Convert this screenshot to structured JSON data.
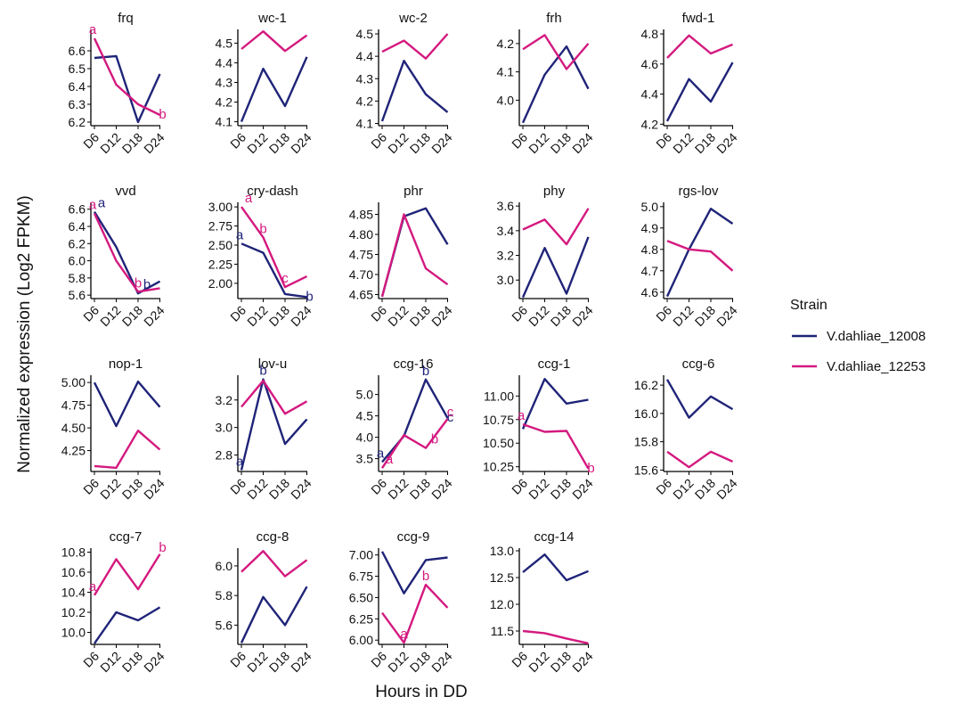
{
  "xlabel": "Hours in DD",
  "ylabel": "Normalized expression (Log2 FPKM)",
  "legend": {
    "title": "Strain",
    "placement": "right",
    "entries": [
      {
        "name": "V.dahliae_12008",
        "color": "#1f2478"
      },
      {
        "name": "V.dahliae_12253",
        "color": "#d4197f"
      }
    ]
  },
  "chart_data": {
    "type": "line",
    "categories": [
      "D6",
      "D12",
      "D18",
      "D24"
    ],
    "panels": [
      {
        "title": "frq",
        "yticks": [
          6.2,
          6.3,
          6.4,
          6.5,
          6.6
        ],
        "tick_decimals": 1,
        "ylim": [
          6.18,
          6.72
        ],
        "series": [
          {
            "name": "V.dahliae_12008",
            "values": [
              6.56,
              6.57,
              6.2,
              6.47
            ]
          },
          {
            "name": "V.dahliae_12253",
            "values": [
              6.67,
              6.41,
              6.3,
              6.24
            ]
          }
        ],
        "annotations": [
          {
            "series": "V.dahliae_12253",
            "point": 0,
            "text": "a"
          },
          {
            "series": "V.dahliae_12253",
            "point": 3,
            "text": "b"
          }
        ]
      },
      {
        "title": "wc-1",
        "yticks": [
          4.1,
          4.2,
          4.3,
          4.4,
          4.5
        ],
        "tick_decimals": 1,
        "ylim": [
          4.08,
          4.57
        ],
        "series": [
          {
            "name": "V.dahliae_12008",
            "values": [
              4.1,
              4.37,
              4.18,
              4.43
            ]
          },
          {
            "name": "V.dahliae_12253",
            "values": [
              4.47,
              4.56,
              4.46,
              4.54
            ]
          }
        ],
        "annotations": []
      },
      {
        "title": "wc-2",
        "yticks": [
          4.1,
          4.2,
          4.3,
          4.4,
          4.5
        ],
        "tick_decimals": 1,
        "ylim": [
          4.09,
          4.52
        ],
        "series": [
          {
            "name": "V.dahliae_12008",
            "values": [
              4.11,
              4.38,
              4.23,
              4.15
            ]
          },
          {
            "name": "V.dahliae_12253",
            "values": [
              4.42,
              4.47,
              4.39,
              4.5
            ]
          }
        ],
        "annotations": []
      },
      {
        "title": "frh",
        "yticks": [
          4.0,
          4.1,
          4.2
        ],
        "tick_decimals": 1,
        "ylim": [
          3.91,
          4.25
        ],
        "series": [
          {
            "name": "V.dahliae_12008",
            "values": [
              3.92,
              4.09,
              4.19,
              4.04
            ]
          },
          {
            "name": "V.dahliae_12253",
            "values": [
              4.18,
              4.23,
              4.11,
              4.2
            ]
          }
        ],
        "annotations": []
      },
      {
        "title": "fwd-1",
        "yticks": [
          4.2,
          4.4,
          4.6,
          4.8
        ],
        "tick_decimals": 1,
        "ylim": [
          4.19,
          4.83
        ],
        "series": [
          {
            "name": "V.dahliae_12008",
            "values": [
              4.22,
              4.5,
              4.35,
              4.61
            ]
          },
          {
            "name": "V.dahliae_12253",
            "values": [
              4.64,
              4.79,
              4.67,
              4.73
            ]
          }
        ],
        "annotations": []
      },
      {
        "title": "vvd",
        "yticks": [
          5.6,
          5.8,
          6.0,
          6.2,
          6.4,
          6.6
        ],
        "tick_decimals": 1,
        "ylim": [
          5.56,
          6.68
        ],
        "series": [
          {
            "name": "V.dahliae_12008",
            "values": [
              6.57,
              6.16,
              5.62,
              5.76
            ]
          },
          {
            "name": "V.dahliae_12253",
            "values": [
              6.55,
              6.0,
              5.64,
              5.68
            ]
          }
        ],
        "annotations": [
          {
            "series": "V.dahliae_12253",
            "point": 0,
            "text": "a"
          },
          {
            "series": "V.dahliae_12008",
            "point": 0,
            "text": "a"
          },
          {
            "series": "V.dahliae_12253",
            "point": 2,
            "text": "b"
          },
          {
            "series": "V.dahliae_12008",
            "point": 2,
            "text": "b"
          }
        ]
      },
      {
        "title": "cry-dash",
        "yticks": [
          2.0,
          2.25,
          2.5,
          2.75,
          3.0
        ],
        "tick_decimals": 2,
        "ylim": [
          1.8,
          3.06
        ],
        "series": [
          {
            "name": "V.dahliae_12008",
            "values": [
              2.52,
              2.4,
              1.86,
              1.82
            ]
          },
          {
            "name": "V.dahliae_12253",
            "values": [
              3.0,
              2.6,
              1.95,
              2.09
            ]
          }
        ],
        "annotations": [
          {
            "series": "V.dahliae_12008",
            "point": 0,
            "text": "a"
          },
          {
            "series": "V.dahliae_12253",
            "point": 0,
            "text": "a"
          },
          {
            "series": "V.dahliae_12253",
            "point": 1,
            "text": "b"
          },
          {
            "series": "V.dahliae_12253",
            "point": 2,
            "text": "c"
          },
          {
            "series": "V.dahliae_12008",
            "point": 3,
            "text": "b"
          }
        ]
      },
      {
        "title": "phr",
        "yticks": [
          4.65,
          4.7,
          4.75,
          4.8,
          4.85
        ],
        "tick_decimals": 2,
        "ylim": [
          4.64,
          4.88
        ],
        "series": [
          {
            "name": "V.dahliae_12008",
            "values": [
              4.645,
              4.845,
              4.865,
              4.775
            ]
          },
          {
            "name": "V.dahliae_12253",
            "values": [
              4.645,
              4.85,
              4.715,
              4.675
            ]
          }
        ],
        "annotations": []
      },
      {
        "title": "phy",
        "yticks": [
          3.0,
          3.2,
          3.4,
          3.6
        ],
        "tick_decimals": 1,
        "ylim": [
          2.85,
          3.63
        ],
        "series": [
          {
            "name": "V.dahliae_12008",
            "values": [
              2.86,
              3.26,
              2.89,
              3.35
            ]
          },
          {
            "name": "V.dahliae_12253",
            "values": [
              3.41,
              3.49,
              3.29,
              3.58
            ]
          }
        ],
        "annotations": []
      },
      {
        "title": "rgs-lov",
        "yticks": [
          4.6,
          4.7,
          4.8,
          4.9,
          5.0
        ],
        "tick_decimals": 1,
        "ylim": [
          4.57,
          5.02
        ],
        "series": [
          {
            "name": "V.dahliae_12008",
            "values": [
              4.58,
              4.8,
              4.99,
              4.92
            ]
          },
          {
            "name": "V.dahliae_12253",
            "values": [
              4.84,
              4.8,
              4.79,
              4.7
            ]
          }
        ],
        "annotations": []
      },
      {
        "title": "nop-1",
        "yticks": [
          4.25,
          4.5,
          4.75,
          5.0
        ],
        "tick_decimals": 2,
        "ylim": [
          4.02,
          5.08
        ],
        "series": [
          {
            "name": "V.dahliae_12008",
            "values": [
              5.0,
              4.52,
              5.01,
              4.73
            ]
          },
          {
            "name": "V.dahliae_12253",
            "values": [
              4.08,
              4.06,
              4.47,
              4.26
            ]
          }
        ],
        "annotations": []
      },
      {
        "title": "lov-u",
        "yticks": [
          2.8,
          3.0,
          3.2
        ],
        "tick_decimals": 1,
        "ylim": [
          2.68,
          3.38
        ],
        "series": [
          {
            "name": "V.dahliae_12008",
            "values": [
              2.69,
              3.35,
              2.88,
              3.06
            ]
          },
          {
            "name": "V.dahliae_12253",
            "values": [
              3.15,
              3.34,
              3.1,
              3.19
            ]
          }
        ],
        "annotations": [
          {
            "series": "V.dahliae_12008",
            "point": 0,
            "text": "a"
          },
          {
            "series": "V.dahliae_12008",
            "point": 1,
            "text": "b"
          }
        ]
      },
      {
        "title": "ccg-16",
        "yticks": [
          3.5,
          4.0,
          4.5,
          5.0
        ],
        "tick_decimals": 1,
        "ylim": [
          3.2,
          5.45
        ],
        "series": [
          {
            "name": "V.dahliae_12008",
            "values": [
              3.42,
              4.03,
              5.35,
              4.45
            ]
          },
          {
            "name": "V.dahliae_12253",
            "values": [
              3.28,
              4.05,
              3.75,
              4.43
            ]
          }
        ],
        "annotations": [
          {
            "series": "V.dahliae_12008",
            "point": 0,
            "text": "a"
          },
          {
            "series": "V.dahliae_12253",
            "point": 0,
            "text": "a"
          },
          {
            "series": "V.dahliae_12008",
            "point": 2,
            "text": "b"
          },
          {
            "series": "V.dahliae_12253",
            "point": 2,
            "text": "b"
          },
          {
            "series": "V.dahliae_12008",
            "point": 3,
            "text": "c"
          },
          {
            "series": "V.dahliae_12253",
            "point": 3,
            "text": "c"
          }
        ]
      },
      {
        "title": "ccg-1",
        "yticks": [
          10.25,
          10.5,
          10.75,
          11.0
        ],
        "tick_decimals": 2,
        "ylim": [
          10.2,
          11.22
        ],
        "series": [
          {
            "name": "V.dahliae_12008",
            "values": [
              10.65,
              11.18,
              10.92,
              10.96
            ]
          },
          {
            "name": "V.dahliae_12253",
            "values": [
              10.7,
              10.62,
              10.63,
              10.23
            ]
          }
        ],
        "annotations": [
          {
            "series": "V.dahliae_12253",
            "point": 0,
            "text": "a"
          },
          {
            "series": "V.dahliae_12253",
            "point": 3,
            "text": "b"
          }
        ]
      },
      {
        "title": "ccg-6",
        "yticks": [
          15.6,
          15.8,
          16.0,
          16.2
        ],
        "tick_decimals": 1,
        "ylim": [
          15.59,
          16.27
        ],
        "series": [
          {
            "name": "V.dahliae_12008",
            "values": [
              16.24,
              15.97,
              16.12,
              16.03
            ]
          },
          {
            "name": "V.dahliae_12253",
            "values": [
              15.73,
              15.62,
              15.73,
              15.66
            ]
          }
        ],
        "annotations": []
      },
      {
        "title": "ccg-7",
        "yticks": [
          10.0,
          10.2,
          10.4,
          10.6,
          10.8
        ],
        "tick_decimals": 1,
        "ylim": [
          9.88,
          10.84
        ],
        "series": [
          {
            "name": "V.dahliae_12008",
            "values": [
              9.89,
              10.2,
              10.12,
              10.25
            ]
          },
          {
            "name": "V.dahliae_12253",
            "values": [
              10.37,
              10.73,
              10.43,
              10.78
            ]
          }
        ],
        "annotations": [
          {
            "series": "V.dahliae_12253",
            "point": 0,
            "text": "a"
          },
          {
            "series": "V.dahliae_12253",
            "point": 3,
            "text": "b"
          }
        ]
      },
      {
        "title": "ccg-8",
        "yticks": [
          5.6,
          5.8,
          6.0
        ],
        "tick_decimals": 1,
        "ylim": [
          5.47,
          6.12
        ],
        "series": [
          {
            "name": "V.dahliae_12008",
            "values": [
              5.48,
              5.79,
              5.6,
              5.86
            ]
          },
          {
            "name": "V.dahliae_12253",
            "values": [
              5.96,
              6.1,
              5.93,
              6.04
            ]
          }
        ],
        "annotations": []
      },
      {
        "title": "ccg-9",
        "yticks": [
          6.0,
          6.25,
          6.5,
          6.75,
          7.0
        ],
        "tick_decimals": 2,
        "ylim": [
          5.95,
          7.08
        ],
        "series": [
          {
            "name": "V.dahliae_12008",
            "values": [
              7.04,
              6.55,
              6.94,
              6.97
            ]
          },
          {
            "name": "V.dahliae_12253",
            "values": [
              6.32,
              5.97,
              6.65,
              6.38
            ]
          }
        ],
        "annotations": [
          {
            "series": "V.dahliae_12253",
            "point": 1,
            "text": "a"
          },
          {
            "series": "V.dahliae_12253",
            "point": 2,
            "text": "b"
          }
        ]
      },
      {
        "title": "ccg-14",
        "yticks": [
          11.5,
          12.0,
          12.5,
          13.0
        ],
        "tick_decimals": 1,
        "ylim": [
          11.25,
          13.05
        ],
        "series": [
          {
            "name": "V.dahliae_12008",
            "values": [
              12.6,
              12.93,
              12.45,
              12.62
            ]
          },
          {
            "name": "V.dahliae_12253",
            "values": [
              11.5,
              11.46,
              11.36,
              11.27
            ]
          }
        ],
        "annotations": []
      }
    ]
  }
}
